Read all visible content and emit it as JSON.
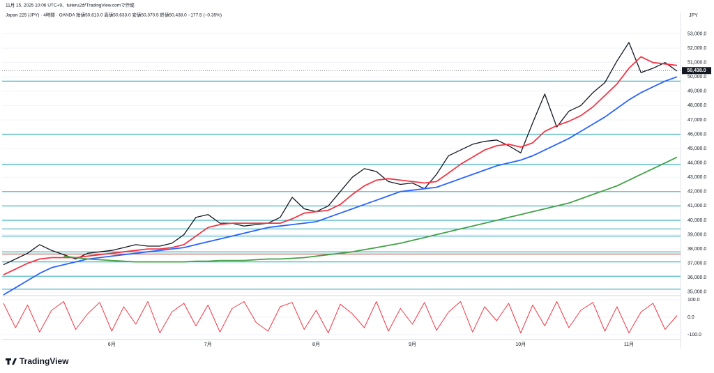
{
  "header": {
    "created": "11月 15, 2025 10:06 UTC+9、tuiteru2がTradingView.comで作成",
    "symbol": "Japan 225 (JPY) · 4時間 · OANDA  始値50,613.0  高値50,633.0  安値50,370.5  終値50,438.0  −177.5 (−0.35%)"
  },
  "brand": "TradingView",
  "chart_data": [
    {
      "type": "line",
      "axis_unit": "JPY",
      "categories": [
        null,
        null,
        null,
        null,
        null,
        null,
        null,
        null,
        null,
        "6月",
        null,
        null,
        null,
        null,
        null,
        null,
        null,
        "7月",
        null,
        null,
        null,
        null,
        null,
        null,
        null,
        null,
        "8月",
        null,
        null,
        null,
        null,
        null,
        null,
        null,
        "9月",
        null,
        null,
        null,
        null,
        null,
        null,
        null,
        null,
        "10月",
        null,
        null,
        null,
        null,
        null,
        null,
        null,
        null,
        "11月",
        null,
        null,
        null,
        null
      ],
      "series": [
        {
          "name": "Price",
          "color": "#131722",
          "width": 1.3,
          "values": [
            36900,
            37300,
            37700,
            38300,
            37900,
            37600,
            37300,
            37700,
            37800,
            37900,
            38100,
            38300,
            38200,
            38200,
            38400,
            39000,
            40200,
            40400,
            39800,
            39800,
            39600,
            39700,
            39800,
            40200,
            41600,
            40800,
            40600,
            41000,
            42000,
            43000,
            43600,
            43400,
            42700,
            42500,
            42600,
            42200,
            43200,
            44500,
            44900,
            45300,
            45500,
            45600,
            45200,
            44700,
            46800,
            48800,
            46500,
            47600,
            48000,
            48900,
            49600,
            51100,
            52400,
            50300,
            50600,
            51000,
            50400
          ]
        },
        {
          "name": "MA red",
          "color": "#f23645",
          "width": 1.8,
          "values": [
            36200,
            36600,
            37000,
            37300,
            37400,
            37400,
            37400,
            37500,
            37600,
            37700,
            37800,
            37900,
            38000,
            38000,
            38100,
            38300,
            38900,
            39500,
            39700,
            39800,
            39800,
            39800,
            39800,
            39800,
            40100,
            40500,
            40600,
            40700,
            41100,
            41800,
            42400,
            42800,
            42900,
            42800,
            42700,
            42600,
            42700,
            43300,
            43900,
            44400,
            44900,
            45200,
            45300,
            45100,
            45400,
            46200,
            46600,
            46900,
            47300,
            47900,
            48700,
            49500,
            50600,
            51400,
            51000,
            50900,
            50800
          ]
        },
        {
          "name": "MA blue",
          "color": "#2962ff",
          "width": 1.8,
          "values": [
            34800,
            35300,
            35800,
            36300,
            36700,
            36900,
            37100,
            37300,
            37400,
            37500,
            37600,
            37700,
            37800,
            37900,
            38000,
            38100,
            38300,
            38500,
            38700,
            38900,
            39100,
            39300,
            39500,
            39600,
            39700,
            39800,
            39900,
            40200,
            40500,
            40800,
            41100,
            41400,
            41700,
            42000,
            42100,
            42200,
            42300,
            42600,
            42900,
            43200,
            43500,
            43800,
            44000,
            44200,
            44500,
            44900,
            45300,
            45700,
            46200,
            46700,
            47200,
            47800,
            48400,
            48900,
            49300,
            49700,
            50000
          ]
        },
        {
          "name": "MA green",
          "color": "#43a047",
          "width": 1.8,
          "values": [
            null,
            null,
            null,
            null,
            null,
            37500,
            37400,
            37300,
            37250,
            37200,
            37150,
            37100,
            37100,
            37100,
            37100,
            37100,
            37150,
            37150,
            37200,
            37200,
            37200,
            37250,
            37300,
            37300,
            37350,
            37400,
            37500,
            37600,
            37700,
            37800,
            37950,
            38100,
            38250,
            38400,
            38600,
            38800,
            39000,
            39200,
            39400,
            39600,
            39800,
            40000,
            40200,
            40400,
            40600,
            40800,
            41000,
            41200,
            41500,
            41800,
            42100,
            42400,
            42800,
            43200,
            43600,
            44000,
            44400
          ]
        }
      ],
      "levels": [
        {
          "value": 35200,
          "color": "#22a6b3"
        },
        {
          "value": 36100,
          "color": "#22a6b3"
        },
        {
          "value": 37100,
          "color": "#22a6b3"
        },
        {
          "value": 37650,
          "color": "#c0392b"
        },
        {
          "value": 37800,
          "color": "#22a6b3"
        },
        {
          "value": 38900,
          "color": "#22a6b3"
        },
        {
          "value": 39400,
          "color": "#22a6b3"
        },
        {
          "value": 40000,
          "color": "#22a6b3"
        },
        {
          "value": 41000,
          "color": "#22a6b3"
        },
        {
          "value": 42000,
          "color": "#22a6b3"
        },
        {
          "value": 43900,
          "color": "#22a6b3"
        },
        {
          "value": 46000,
          "color": "#22a6b3"
        },
        {
          "value": 49700,
          "color": "#22a6b3"
        }
      ],
      "last_price": {
        "value": 50438,
        "label": "50,438.0"
      },
      "ylim": [
        34700,
        53900
      ],
      "yticks": [
        {
          "value": 35000,
          "label": "35,000.0"
        },
        {
          "value": 36000,
          "label": "36,000.0"
        },
        {
          "value": 37000,
          "label": "37,000.0"
        },
        {
          "value": 38000,
          "label": "38,000.0"
        },
        {
          "value": 39000,
          "label": "39,000.0"
        },
        {
          "value": 40000,
          "label": "40,000.0"
        },
        {
          "value": 41000,
          "label": "41,000.0"
        },
        {
          "value": 42000,
          "label": "42,000.0"
        },
        {
          "value": 43000,
          "label": "43,000.0"
        },
        {
          "value": 44000,
          "label": "44,000.0"
        },
        {
          "value": 45000,
          "label": "45,000.0"
        },
        {
          "value": 46000,
          "label": "46,000.0"
        },
        {
          "value": 47000,
          "label": "47,000.0"
        },
        {
          "value": 48000,
          "label": "48,000.0"
        },
        {
          "value": 49000,
          "label": "49,000.0"
        },
        {
          "value": 50000,
          "label": "50,000.0"
        },
        {
          "value": 51000,
          "label": "51,000.0"
        },
        {
          "value": 52000,
          "label": "52,000.0"
        },
        {
          "value": 53000,
          "label": "53,000.0"
        }
      ]
    },
    {
      "type": "line",
      "series": [
        {
          "name": "Oscillator",
          "color": "#f23645",
          "width": 1,
          "values": [
            80,
            -60,
            70,
            -85,
            40,
            90,
            -70,
            20,
            85,
            -80,
            60,
            -40,
            90,
            -90,
            30,
            80,
            -50,
            70,
            -85,
            50,
            90,
            -30,
            -80,
            60,
            85,
            -70,
            40,
            -90,
            75,
            20,
            -60,
            90,
            -80,
            50,
            -40,
            85,
            -75,
            30,
            90,
            -85,
            60,
            -20,
            80,
            -90,
            70,
            -50,
            90,
            -60,
            40,
            85,
            -80,
            60,
            -90,
            30,
            80,
            -70,
            10
          ]
        }
      ],
      "ylim": [
        -120,
        120
      ],
      "yticks": [
        {
          "value": 100,
          "label": "100.0"
        },
        {
          "value": 0,
          "label": "0.0"
        },
        {
          "value": -100,
          "label": "-100.0"
        }
      ]
    }
  ]
}
